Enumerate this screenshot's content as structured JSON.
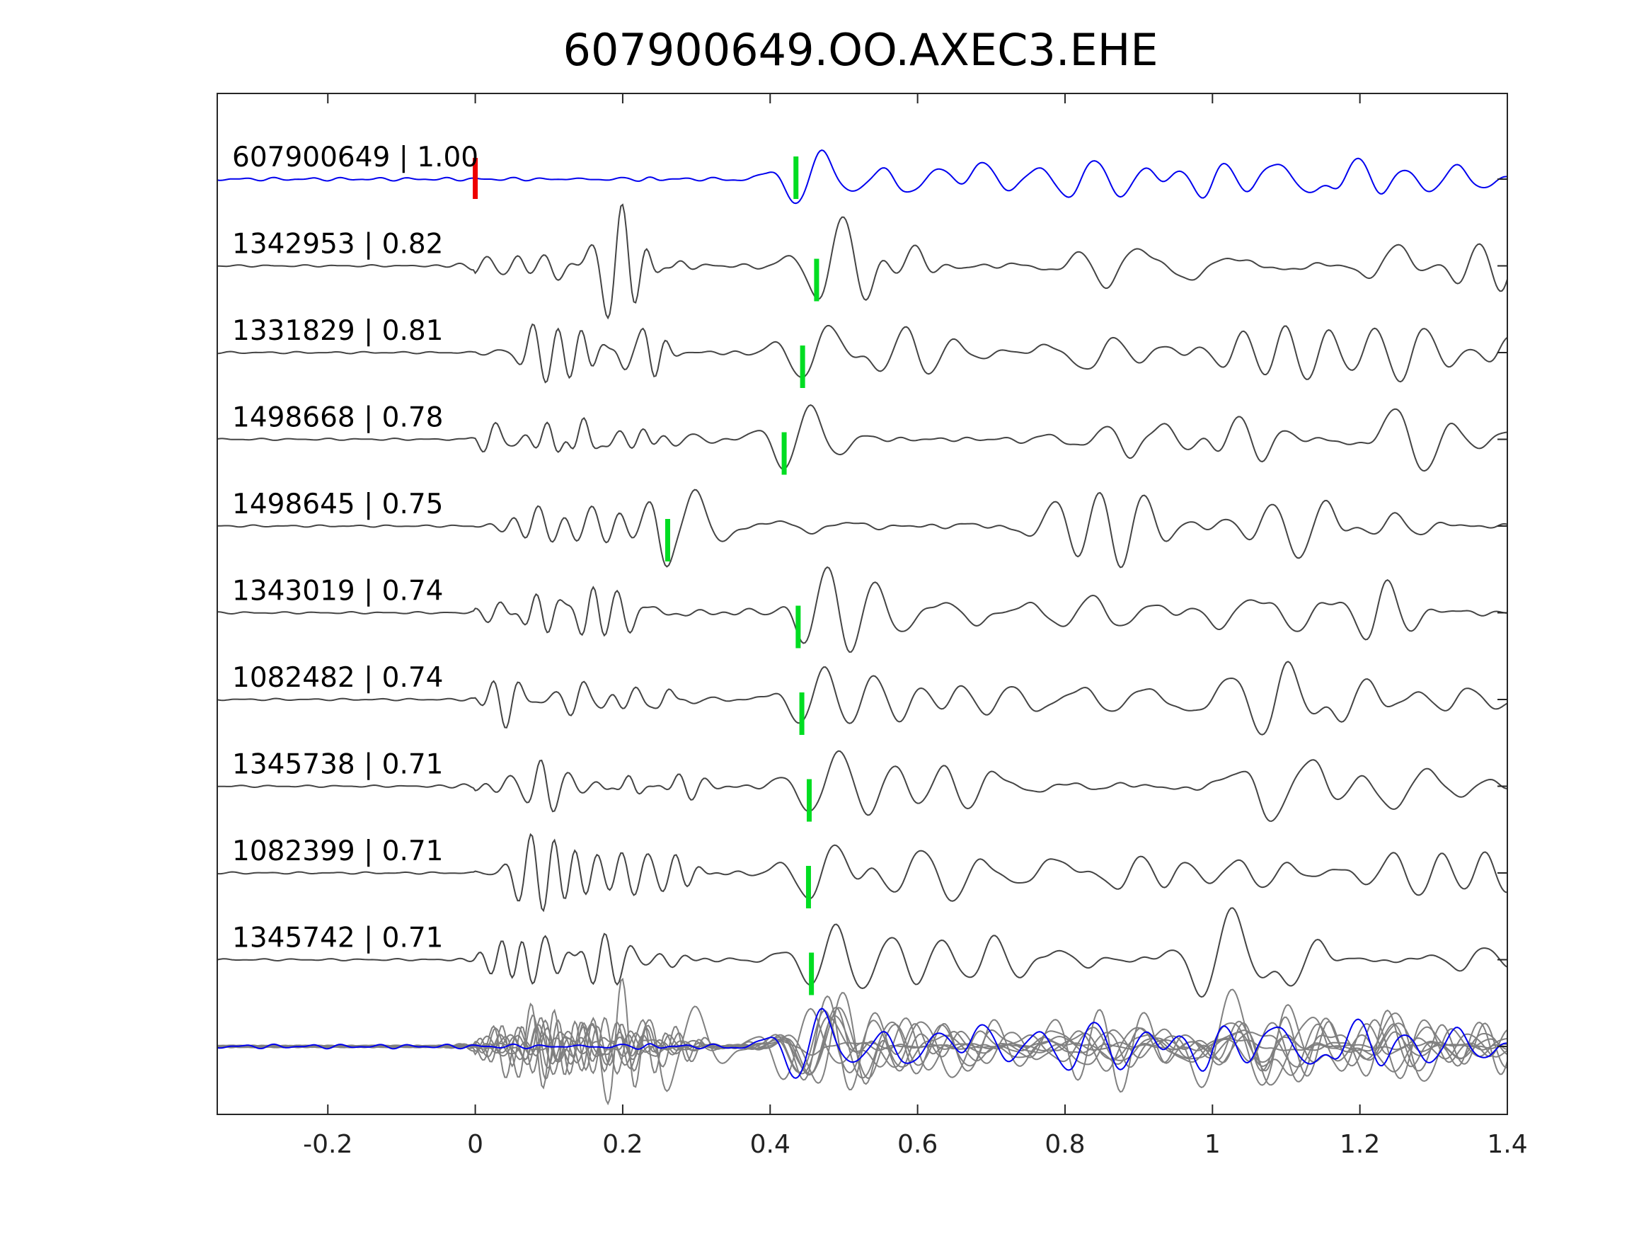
{
  "chart_data": {
    "type": "line",
    "title": "607900649.OO.AXEC3.EHE",
    "xlabel": "",
    "ylabel": "",
    "xlim": [
      -0.35,
      1.4
    ],
    "xticks": [
      -0.2,
      0,
      0.2,
      0.4,
      0.6,
      0.8,
      1,
      1.2,
      1.4
    ],
    "xtick_labels": [
      "-0.2",
      "0",
      "0.2",
      "0.4",
      "0.6",
      "0.8",
      "1",
      "1.2",
      "1.4"
    ],
    "grid": false,
    "colors": {
      "reference": "#0000ee",
      "template": "#444444",
      "overlay": "#808080",
      "origin_marker": "#ee0000",
      "pick_marker": "#00dd22"
    },
    "origin_marker_time": 0.0,
    "traces": [
      {
        "label": "607900649 | 1.00",
        "pick": 0.435,
        "role": "reference"
      },
      {
        "label": "1342953 | 0.82",
        "pick": 0.463,
        "role": "template"
      },
      {
        "label": "1331829 | 0.81",
        "pick": 0.444,
        "role": "template"
      },
      {
        "label": "1498668 | 0.78",
        "pick": 0.419,
        "role": "template"
      },
      {
        "label": "1498645 | 0.75",
        "pick": 0.261,
        "role": "template"
      },
      {
        "label": "1343019 | 0.74",
        "pick": 0.438,
        "role": "template"
      },
      {
        "label": "1082482 | 0.74",
        "pick": 0.443,
        "role": "template"
      },
      {
        "label": "1345738 | 0.71",
        "pick": 0.453,
        "role": "template"
      },
      {
        "label": "1082399 | 0.71",
        "pick": 0.452,
        "role": "template"
      },
      {
        "label": "1345742 | 0.71",
        "pick": 0.456,
        "role": "template"
      }
    ]
  }
}
